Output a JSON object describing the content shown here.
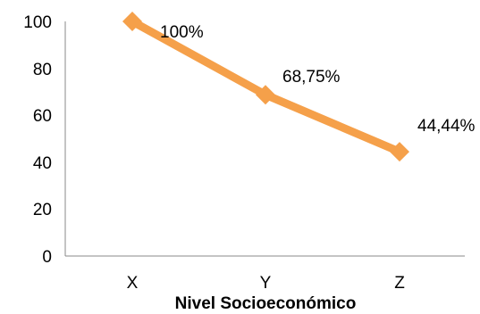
{
  "chart_data": {
    "type": "line",
    "categories": [
      "X",
      "Y",
      "Z"
    ],
    "series": [
      {
        "values": [
          100,
          68.75,
          44.44
        ],
        "labels": [
          "100%",
          "68,75%",
          "44,44%"
        ]
      }
    ],
    "yticks": [
      "0",
      "20",
      "40",
      "60",
      "80",
      "100"
    ],
    "ylim": [
      0,
      100
    ],
    "xlabel": "Nivel Socioeconómico",
    "line_color": "#F5A04A",
    "grid": false,
    "legend": false
  }
}
